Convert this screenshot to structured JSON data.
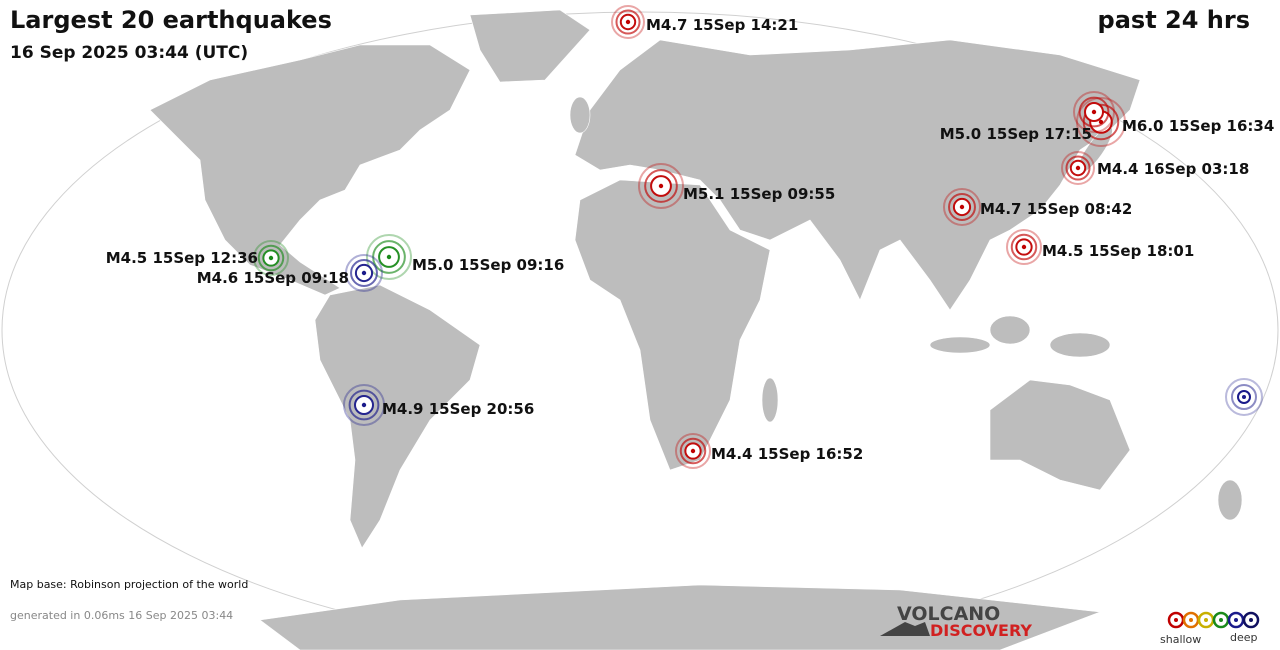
{
  "header": {
    "title": "Largest 20 earthquakes",
    "subtitle": "16 Sep 2025 03:44 (UTC)",
    "period": "past 24 hrs"
  },
  "quakes": [
    {
      "label": "M4.7 15Sep 14:21",
      "color": "#c00000"
    },
    {
      "label": "M6.0 15Sep 16:34",
      "color": "#c00000"
    },
    {
      "label": "M5.0 15Sep 17:15",
      "color": "#c00000"
    },
    {
      "label": "M4.4 16Sep 03:18",
      "color": "#c00000"
    },
    {
      "label": "M5.1 15Sep 09:55",
      "color": "#c00000"
    },
    {
      "label": "M4.7 15Sep 08:42",
      "color": "#c00000"
    },
    {
      "label": "M4.5 15Sep 18:01",
      "color": "#c00000"
    },
    {
      "label": "M4.5 15Sep 12:36",
      "color": "#1a8a1a"
    },
    {
      "label": "M5.0 15Sep 09:16",
      "color": "#1a8a1a"
    },
    {
      "label": "M4.6 15Sep 09:18",
      "color": "#1a1a8a"
    },
    {
      "label": "M4.9 15Sep 20:56",
      "color": "#1a1a8a"
    },
    {
      "label": "M4.4 15Sep 16:52",
      "color": "#c00000"
    }
  ],
  "footer": {
    "map_base": "Map base: Robinson projection of the world",
    "generated": "generated in 0.06ms 16 Sep 2025 03:44"
  },
  "logo": {
    "top": "VOLCANO",
    "bottom": "DISCOVERY"
  },
  "legend": {
    "shallow": "shallow",
    "deep": "deep"
  }
}
